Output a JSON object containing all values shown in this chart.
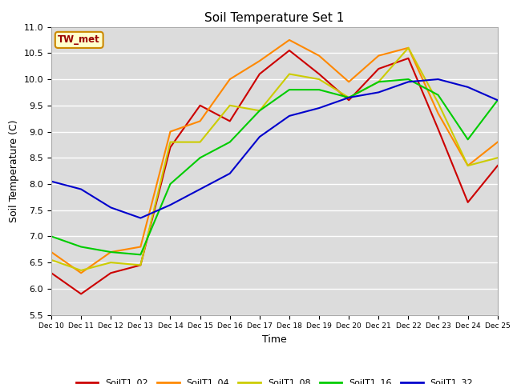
{
  "title": "Soil Temperature Set 1",
  "xlabel": "Time",
  "ylabel": "Soil Temperature (C)",
  "ylim": [
    5.5,
    11.0
  ],
  "xlim": [
    10,
    25
  ],
  "xtick_labels": [
    "Dec 10",
    "Dec 11",
    "Dec 12",
    "Dec 13",
    "Dec 14",
    "Dec 15",
    "Dec 16",
    "Dec 17",
    "Dec 18",
    "Dec 19",
    "Dec 20",
    "Dec 21",
    "Dec 22",
    "Dec 23",
    "Dec 24",
    "Dec 25"
  ],
  "ytick_values": [
    5.5,
    6.0,
    6.5,
    7.0,
    7.5,
    8.0,
    8.5,
    9.0,
    9.5,
    10.0,
    10.5,
    11.0
  ],
  "annotation_text": "TW_met",
  "annotation_box_color": "#FFFFCC",
  "annotation_text_color": "#990000",
  "annotation_edge_color": "#CC8800",
  "bg_color": "#DCDCDC",
  "grid_color": "#FFFFFF",
  "series": {
    "SoilT1_02": {
      "color": "#CC0000",
      "x": [
        10,
        11,
        12,
        13,
        14,
        15,
        16,
        17,
        18,
        19,
        20,
        21,
        22,
        23,
        24,
        25
      ],
      "y": [
        6.3,
        5.9,
        6.3,
        6.45,
        8.7,
        9.5,
        9.2,
        10.1,
        10.55,
        10.1,
        9.6,
        10.2,
        10.4,
        9.05,
        7.65,
        8.35
      ]
    },
    "SoilT1_04": {
      "color": "#FF8800",
      "x": [
        10,
        11,
        12,
        13,
        14,
        15,
        16,
        17,
        18,
        19,
        20,
        21,
        22,
        23,
        24,
        25
      ],
      "y": [
        6.7,
        6.3,
        6.7,
        6.8,
        9.0,
        9.2,
        10.0,
        10.35,
        10.75,
        10.45,
        9.95,
        10.45,
        10.6,
        9.35,
        8.35,
        8.8
      ]
    },
    "SoilT1_08": {
      "color": "#CCCC00",
      "x": [
        10,
        11,
        12,
        13,
        14,
        15,
        16,
        17,
        18,
        19,
        20,
        21,
        22,
        23,
        24,
        25
      ],
      "y": [
        6.55,
        6.35,
        6.5,
        6.45,
        8.8,
        8.8,
        9.5,
        9.4,
        10.1,
        10.0,
        9.65,
        9.95,
        10.6,
        9.55,
        8.35,
        8.5
      ]
    },
    "SoilT1_16": {
      "color": "#00CC00",
      "x": [
        10,
        11,
        12,
        13,
        14,
        15,
        16,
        17,
        18,
        19,
        20,
        21,
        22,
        23,
        24,
        25
      ],
      "y": [
        7.0,
        6.8,
        6.7,
        6.65,
        8.0,
        8.5,
        8.8,
        9.4,
        9.8,
        9.8,
        9.65,
        9.95,
        10.0,
        9.7,
        8.85,
        9.6
      ]
    },
    "SoilT1_32": {
      "color": "#0000CC",
      "x": [
        10,
        11,
        12,
        13,
        14,
        15,
        16,
        17,
        18,
        19,
        20,
        21,
        22,
        23,
        24,
        25
      ],
      "y": [
        8.05,
        7.9,
        7.55,
        7.35,
        7.6,
        7.9,
        8.2,
        8.9,
        9.3,
        9.45,
        9.65,
        9.75,
        9.95,
        10.0,
        9.85,
        9.6
      ]
    }
  }
}
